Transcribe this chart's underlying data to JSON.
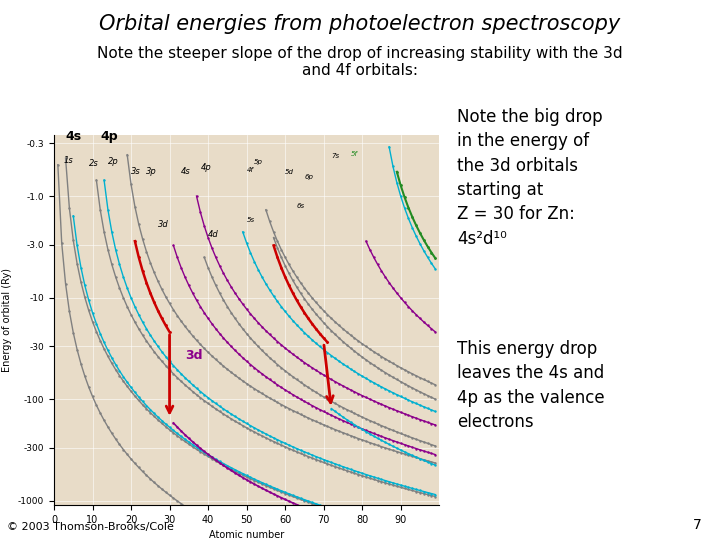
{
  "title": "Orbital energies from photoelectron spectroscopy",
  "subtitle": "Note the steeper slope of the drop of increasing stability with the 3d\nand 4f orbitals:",
  "note1": "Note the big drop\nin the energy of\nthe 3d orbitals\nstarting at\nZ = 30 for Zn:\n4s²d¹⁰",
  "note2": "This energy drop\nleaves the 4s and\n4p as the valence\nelectrons",
  "copyright": "© 2003 Thomson-Brooks/Cole",
  "page_number": "7",
  "bg_color": "#ffffff",
  "plot_bg_color": "#e8dcc8",
  "title_fontsize": 15,
  "subtitle_fontsize": 11,
  "note_fontsize": 12,
  "copyright_fontsize": 8,
  "gray": "#808080",
  "cyan": "#00b0d0",
  "purple": "#8B008B",
  "green": "#228B22",
  "red": "#cc0000"
}
